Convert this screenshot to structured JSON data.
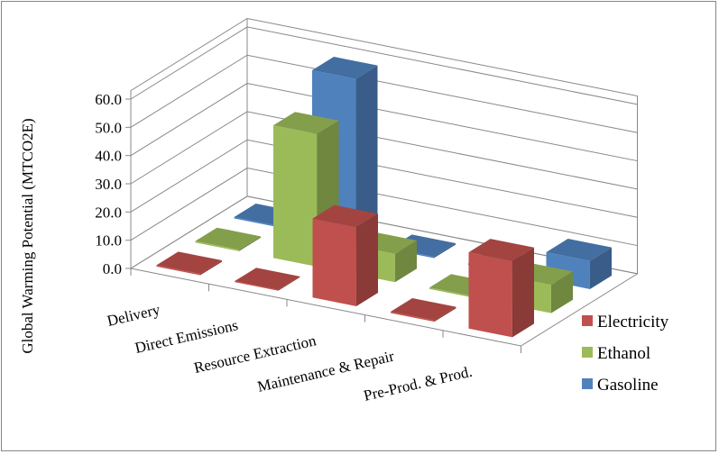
{
  "chart_data": {
    "type": "bar",
    "subtype": "3d-column",
    "title": "",
    "xlabel": "",
    "ylabel": "Global Warming Potential (MTCO2E)",
    "ylim": [
      0,
      60
    ],
    "yticks": [
      "0.0",
      "10.0",
      "20.0",
      "30.0",
      "40.0",
      "50.0",
      "60.0"
    ],
    "grid": true,
    "legend_position": "right",
    "categories": [
      "Delivery",
      "Direct Emissions",
      "Resource Extraction",
      "Maintenance & Repair",
      "Pre-Prod. & Prod."
    ],
    "series": [
      {
        "name": "Electricity",
        "color": "#C0504D",
        "values": [
          0.5,
          0.3,
          28,
          0.5,
          27
        ]
      },
      {
        "name": "Ethanol",
        "color": "#9BBB59",
        "values": [
          0.5,
          47,
          10,
          0.5,
          10
        ]
      },
      {
        "name": "Gasoline",
        "color": "#4F81BD",
        "values": [
          0.5,
          58,
          0.5,
          0.5,
          10
        ]
      }
    ]
  }
}
